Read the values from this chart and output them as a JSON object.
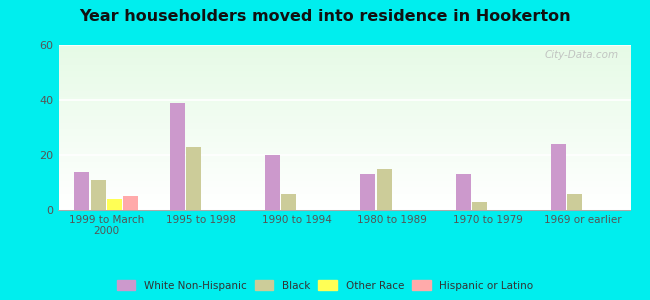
{
  "title": "Year householders moved into residence in Hookerton",
  "categories": [
    "1999 to March\n2000",
    "1995 to 1998",
    "1990 to 1994",
    "1980 to 1989",
    "1970 to 1979",
    "1969 or earlier"
  ],
  "series": {
    "White Non-Hispanic": [
      14,
      39,
      20,
      13,
      13,
      24
    ],
    "Black": [
      11,
      23,
      6,
      15,
      3,
      6
    ],
    "Other Race": [
      4,
      0,
      0,
      0,
      0,
      0
    ],
    "Hispanic or Latino": [
      5,
      0,
      0,
      0,
      0,
      0
    ]
  },
  "colors": {
    "White Non-Hispanic": "#cc99cc",
    "Black": "#cccc99",
    "Other Race": "#ffff55",
    "Hispanic or Latino": "#ffaaaa"
  },
  "ylim": [
    0,
    60
  ],
  "yticks": [
    0,
    20,
    40,
    60
  ],
  "outer_bg": "#00eeee",
  "watermark": "City-Data.com"
}
